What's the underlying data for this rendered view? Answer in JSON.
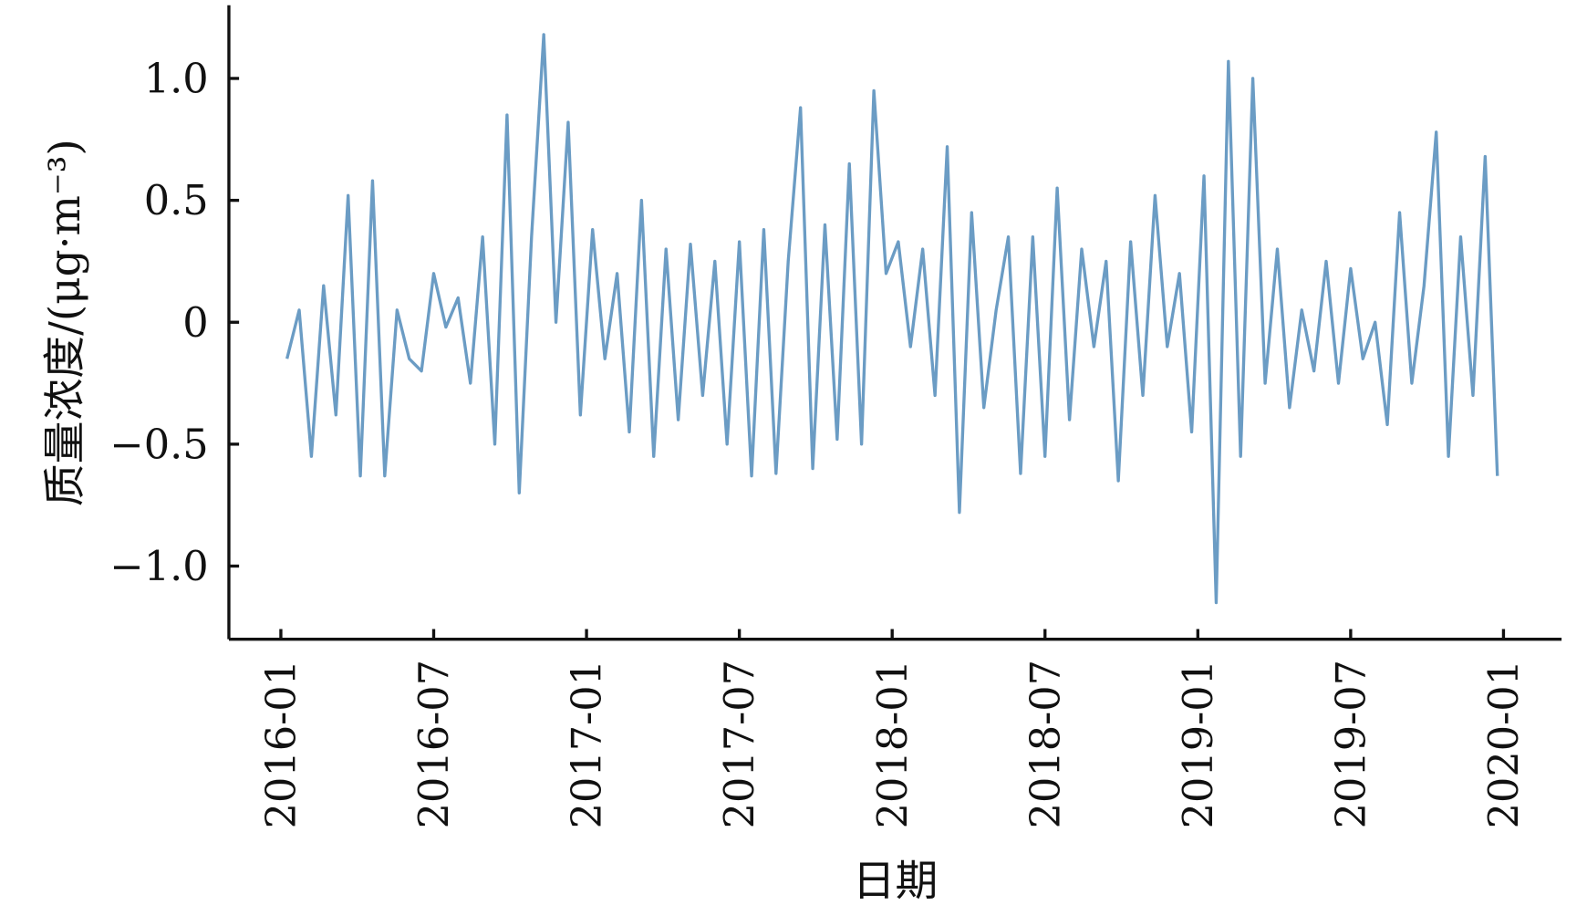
{
  "chart_data": {
    "type": "line",
    "x_label": "日期",
    "y_label": "质量浓度/(μg·m⁻³)",
    "x": [
      2016.02,
      2016.06,
      2016.1,
      2016.14,
      2016.18,
      2016.22,
      2016.26,
      2016.3,
      2016.34,
      2016.38,
      2016.42,
      2016.46,
      2016.5,
      2016.54,
      2016.58,
      2016.62,
      2016.66,
      2016.7,
      2016.74,
      2016.78,
      2016.82,
      2016.86,
      2016.9,
      2016.94,
      2016.98,
      2017.02,
      2017.06,
      2017.1,
      2017.14,
      2017.18,
      2017.22,
      2017.26,
      2017.3,
      2017.34,
      2017.38,
      2017.42,
      2017.46,
      2017.5,
      2017.54,
      2017.58,
      2017.62,
      2017.66,
      2017.7,
      2017.74,
      2017.78,
      2017.82,
      2017.86,
      2017.9,
      2017.94,
      2017.98,
      2018.02,
      2018.06,
      2018.1,
      2018.14,
      2018.18,
      2018.22,
      2018.26,
      2018.3,
      2018.34,
      2018.38,
      2018.42,
      2018.46,
      2018.5,
      2018.54,
      2018.58,
      2018.62,
      2018.66,
      2018.7,
      2018.74,
      2018.78,
      2018.82,
      2018.86,
      2018.9,
      2018.94,
      2018.98,
      2019.02,
      2019.06,
      2019.1,
      2019.14,
      2019.18,
      2019.22,
      2019.26,
      2019.3,
      2019.34,
      2019.38,
      2019.42,
      2019.46,
      2019.5,
      2019.54,
      2019.58,
      2019.62,
      2019.66,
      2019.7,
      2019.74,
      2019.78,
      2019.82,
      2019.86,
      2019.9,
      2019.94,
      2019.98
    ],
    "series": [
      {
        "name": "质量浓度",
        "color": "#6b9cc4",
        "values": [
          -0.15,
          0.05,
          -0.55,
          0.15,
          -0.38,
          0.52,
          -0.63,
          0.58,
          -0.63,
          0.05,
          -0.15,
          -0.2,
          0.2,
          -0.02,
          0.1,
          -0.25,
          0.35,
          -0.5,
          0.85,
          -0.7,
          0.35,
          1.18,
          0.0,
          0.82,
          -0.38,
          0.38,
          -0.15,
          0.2,
          -0.45,
          0.5,
          -0.55,
          0.3,
          -0.4,
          0.32,
          -0.3,
          0.25,
          -0.5,
          0.33,
          -0.63,
          0.38,
          -0.62,
          0.25,
          0.88,
          -0.6,
          0.4,
          -0.48,
          0.65,
          -0.5,
          0.95,
          0.2,
          0.33,
          -0.1,
          0.3,
          -0.3,
          0.72,
          -0.78,
          0.45,
          -0.35,
          0.05,
          0.35,
          -0.62,
          0.35,
          -0.55,
          0.55,
          -0.4,
          0.3,
          -0.1,
          0.25,
          -0.65,
          0.33,
          -0.3,
          0.52,
          -0.1,
          0.2,
          -0.45,
          0.6,
          -1.15,
          1.07,
          -0.55,
          1.0,
          -0.25,
          0.3,
          -0.35,
          0.05,
          -0.2,
          0.25,
          -0.25,
          0.22,
          -0.15,
          0.0,
          -0.42,
          0.45,
          -0.25,
          0.15,
          0.78,
          -0.55,
          0.35,
          -0.3,
          0.68,
          -0.63
        ]
      }
    ],
    "xlim": [
      2015.83,
      2020.19
    ],
    "xticks": [
      {
        "value": 2016.0,
        "label": "2016-01"
      },
      {
        "value": 2016.5,
        "label": "2016-07"
      },
      {
        "value": 2017.0,
        "label": "2017-01"
      },
      {
        "value": 2017.5,
        "label": "2017-07"
      },
      {
        "value": 2018.0,
        "label": "2018-01"
      },
      {
        "value": 2018.5,
        "label": "2018-07"
      },
      {
        "value": 2019.0,
        "label": "2019-01"
      },
      {
        "value": 2019.5,
        "label": "2019-07"
      },
      {
        "value": 2020.0,
        "label": "2020-01"
      }
    ],
    "ylim": [
      -1.3,
      1.3
    ],
    "yticks": [
      {
        "value": -1,
        "label": "−1.0"
      },
      {
        "value": -0.5,
        "label": "−0.5"
      },
      0,
      0.5,
      {
        "value": 1,
        "label": "1.0"
      }
    ],
    "grid": false
  }
}
